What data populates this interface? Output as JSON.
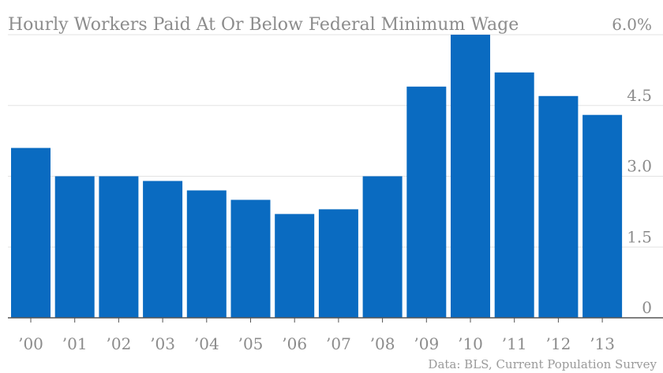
{
  "chart_data": {
    "type": "bar",
    "title": "Hourly Workers Paid At Or Below Federal Minimum Wage",
    "source": "Data: BLS, Current Population Survey",
    "categories": [
      "’00",
      "’01",
      "’02",
      "’03",
      "’04",
      "’05",
      "’06",
      "’07",
      "’08",
      "’09",
      "’10",
      "’11",
      "’12",
      "’13"
    ],
    "values": [
      3.6,
      3.0,
      3.0,
      2.9,
      2.7,
      2.5,
      2.2,
      2.3,
      3.0,
      4.9,
      6.0,
      5.2,
      4.7,
      4.3
    ],
    "ylim": [
      0,
      6.0
    ],
    "yticks": [
      0,
      1.5,
      3.0,
      4.5,
      6.0
    ],
    "ytick_labels": [
      "0",
      "1.5",
      "3.0",
      "4.5",
      "6.0%"
    ],
    "grid": true,
    "colors": {
      "bar": "#0a6bc1"
    }
  }
}
